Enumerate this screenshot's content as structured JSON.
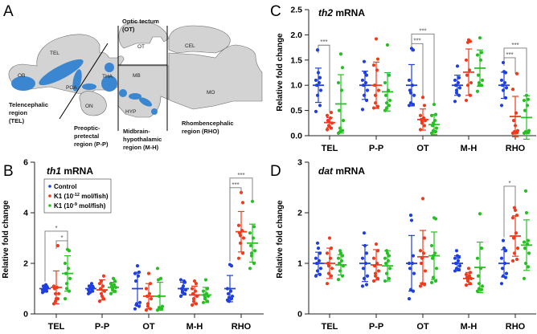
{
  "figure": {
    "panels": [
      "A",
      "B",
      "C",
      "D"
    ],
    "diagram": {
      "panel": "A",
      "structure_labels": [
        "OB",
        "TEL",
        "POA",
        "THA",
        "ON",
        "OT",
        "MB",
        "HYP",
        "CEL",
        "MO"
      ],
      "region_labels": {
        "tel": [
          "Telencephalic",
          "region",
          "(TEL)"
        ],
        "pp": [
          "Preoptic-",
          "pretectal",
          "region (P-P)"
        ],
        "ot": [
          "Optic tectum",
          "(OT)"
        ],
        "mh": [
          "Midbrain-",
          "hypothalamic",
          "region (M-H)"
        ],
        "rho": [
          "Rhombencephalic",
          "region (RHO)"
        ]
      },
      "colors": {
        "tissue": "#d3d3d3",
        "dopaminergic": "#3a86d0",
        "outline": "#555555"
      }
    },
    "legend": {
      "entries": [
        {
          "label": "Control",
          "color": "#1f3fe0"
        },
        {
          "label_main": "K1 (10",
          "sup": "-12",
          "label_tail": " mol/fish)",
          "color": "#f03a1e"
        },
        {
          "label_main": "K1 (10",
          "sup": "-9",
          "label_tail": " mol/fish)",
          "color": "#27c022"
        }
      ]
    }
  },
  "chart_data": [
    {
      "panel": "B",
      "type": "scatter",
      "title_italic": "th1",
      "title_rest": " mRNA",
      "ylabel": "Relative fold change",
      "ylim": [
        0,
        6
      ],
      "yticks": [
        0,
        2,
        4,
        6
      ],
      "ytick_labels": [
        "0",
        "2",
        "4",
        "6"
      ],
      "categories": [
        "TEL",
        "P-P",
        "OT",
        "M-H",
        "RHO"
      ],
      "series": [
        {
          "name": "Control",
          "color": "#1f3fe0",
          "mean": [
            1.0,
            1.0,
            1.0,
            1.0,
            1.0
          ],
          "sd": [
            0.12,
            0.13,
            0.65,
            0.25,
            0.52
          ],
          "points": [
            [
              0.85,
              0.9,
              1.0,
              1.05,
              1.1,
              1.15,
              0.95,
              1.0,
              1.1,
              0.9
            ],
            [
              0.8,
              0.9,
              1.0,
              1.05,
              1.1,
              1.2,
              0.95,
              1.0,
              1.1,
              0.85
            ],
            [
              0.2,
              0.3,
              0.4,
              0.45,
              1.3,
              1.5,
              1.6,
              1.65,
              1.9,
              0.35
            ],
            [
              0.7,
              0.8,
              0.9,
              0.95,
              1.0,
              1.3,
              1.35,
              1.25,
              1.1,
              0.85
            ],
            [
              0.55,
              0.6,
              0.65,
              0.7,
              0.8,
              0.9,
              1.0,
              1.9,
              1.95,
              0.5
            ]
          ]
        },
        {
          "name": "K1 (10^-12 mol/fish)",
          "color": "#f03a1e",
          "mean": [
            1.05,
            0.95,
            0.7,
            0.75,
            3.25
          ],
          "sd": [
            0.65,
            0.4,
            0.5,
            0.35,
            0.8
          ],
          "points": [
            [
              0.4,
              0.6,
              0.8,
              0.8,
              1.0,
              1.05,
              1.1,
              2.7,
              0.6,
              0.5
            ],
            [
              0.5,
              0.6,
              0.8,
              0.9,
              1.0,
              1.1,
              1.2,
              1.5,
              0.7,
              1.3
            ],
            [
              0.15,
              0.2,
              0.4,
              0.6,
              0.7,
              0.8,
              1.0,
              1.2,
              1.6,
              0.3
            ],
            [
              0.35,
              0.4,
              0.5,
              0.7,
              0.8,
              0.9,
              1.0,
              1.2,
              1.3,
              0.6
            ],
            [
              2.2,
              2.4,
              2.8,
              3.0,
              3.2,
              3.3,
              3.5,
              4.4,
              4.8,
              3.1
            ]
          ]
        },
        {
          "name": "K1 (10^-9 mol/fish)",
          "color": "#27c022",
          "mean": [
            1.6,
            1.05,
            0.7,
            0.75,
            2.8
          ],
          "sd": [
            0.7,
            0.2,
            0.55,
            0.3,
            0.75
          ],
          "points": [
            [
              0.6,
              0.9,
              1.2,
              1.4,
              1.6,
              1.8,
              2.0,
              2.5,
              2.55,
              1.0
            ],
            [
              0.8,
              0.9,
              1.0,
              1.05,
              1.1,
              1.15,
              1.2,
              1.3,
              1.4,
              0.95
            ],
            [
              0.15,
              0.2,
              0.25,
              0.3,
              1.35,
              1.4,
              1.8,
              0.2,
              0.22,
              0.7
            ],
            [
              0.45,
              0.5,
              0.6,
              0.7,
              0.75,
              0.8,
              0.9,
              1.0,
              1.35,
              0.65
            ],
            [
              1.8,
              2.0,
              2.3,
              2.5,
              2.7,
              3.0,
              3.2,
              3.45,
              4.45,
              2.4
            ]
          ]
        }
      ],
      "significance": [
        {
          "group": 0,
          "from": 0,
          "to": 2,
          "label": "*"
        },
        {
          "group": 0,
          "from": 1,
          "to": 2,
          "label": "*"
        },
        {
          "group": 4,
          "from": 0,
          "to": 1,
          "label": "***"
        },
        {
          "group": 4,
          "from": 0,
          "to": 2,
          "label": "***"
        }
      ],
      "legend_position": "top-left"
    },
    {
      "panel": "C",
      "type": "scatter",
      "title_italic": "th2",
      "title_rest": " mRNA",
      "ylabel": "Relative fold change",
      "ylim": [
        0,
        2.5
      ],
      "yticks": [
        0,
        0.5,
        1.0,
        1.5,
        2.0,
        2.5
      ],
      "ytick_labels": [
        "0.0",
        "0.5",
        "1.0",
        "1.5",
        "2.0",
        "2.5"
      ],
      "categories": [
        "TEL",
        "P-P",
        "OT",
        "M-H",
        "RHO"
      ],
      "series": [
        {
          "name": "Control",
          "color": "#1f3fe0",
          "mean": [
            1.0,
            1.0,
            1.0,
            1.0,
            1.0
          ],
          "sd": [
            0.34,
            0.28,
            0.41,
            0.2,
            0.26
          ],
          "points": [
            [
              0.48,
              0.6,
              0.8,
              0.9,
              1.0,
              1.05,
              1.1,
              1.15,
              1.25,
              1.7
            ],
            [
              0.52,
              0.7,
              0.8,
              0.9,
              1.0,
              1.05,
              1.1,
              1.2,
              1.25,
              1.47
            ],
            [
              0.6,
              0.62,
              0.65,
              0.8,
              0.9,
              1.0,
              1.1,
              1.7,
              1.73,
              0.85
            ],
            [
              0.68,
              0.8,
              0.9,
              0.95,
              1.0,
              1.05,
              1.1,
              1.15,
              1.38,
              0.85
            ],
            [
              0.6,
              0.75,
              0.9,
              0.95,
              1.0,
              1.05,
              1.1,
              1.25,
              1.27,
              1.45
            ]
          ]
        },
        {
          "name": "K1 (10^-12 mol/fish)",
          "color": "#f03a1e",
          "mean": [
            0.26,
            1.0,
            0.32,
            1.26,
            0.38
          ],
          "sd": [
            0.1,
            0.46,
            0.21,
            0.46,
            0.4
          ],
          "points": [
            [
              0.12,
              0.15,
              0.2,
              0.25,
              0.3,
              0.35,
              0.4,
              0.46,
              0.18,
              0.28
            ],
            [
              0.55,
              0.58,
              0.65,
              0.9,
              1.0,
              1.3,
              1.4,
              1.52,
              1.92,
              0.8
            ],
            [
              0.12,
              0.2,
              0.25,
              0.3,
              0.32,
              0.35,
              0.4,
              0.6,
              0.76,
              0.28
            ],
            [
              0.7,
              0.8,
              1.0,
              1.05,
              1.2,
              1.3,
              1.5,
              1.87,
              1.9,
              1.85
            ],
            [
              0.05,
              0.06,
              0.07,
              0.1,
              0.3,
              0.45,
              0.92,
              1.23,
              0.2,
              0.08
            ]
          ]
        },
        {
          "name": "K1 (10^-9 mol/fish)",
          "color": "#27c022",
          "mean": [
            0.63,
            0.87,
            0.22,
            1.34,
            0.36
          ],
          "sd": [
            0.58,
            0.38,
            0.2,
            0.36,
            0.43
          ],
          "points": [
            [
              0.05,
              0.1,
              0.15,
              0.3,
              0.5,
              0.9,
              1.05,
              1.35,
              1.62,
              0.08
            ],
            [
              0.5,
              0.6,
              0.65,
              0.7,
              0.8,
              0.9,
              1.05,
              1.2,
              1.8,
              0.55
            ],
            [
              0.05,
              0.08,
              0.1,
              0.15,
              0.2,
              0.3,
              0.4,
              0.42,
              0.62,
              0.25
            ],
            [
              0.88,
              1.0,
              1.05,
              1.1,
              1.2,
              1.5,
              1.6,
              1.65,
              1.94,
              1.0
            ],
            [
              0.05,
              0.06,
              0.08,
              0.1,
              0.5,
              0.6,
              0.7,
              0.72,
              0.8,
              0.07
            ]
          ]
        }
      ],
      "significance": [
        {
          "group": 0,
          "from": 0,
          "to": 1,
          "label": "***"
        },
        {
          "group": 2,
          "from": 0,
          "to": 1,
          "label": "***"
        },
        {
          "group": 2,
          "from": 0,
          "to": 2,
          "label": "***"
        },
        {
          "group": 4,
          "from": 0,
          "to": 1,
          "label": "***"
        },
        {
          "group": 4,
          "from": 0,
          "to": 2,
          "label": "***"
        }
      ]
    },
    {
      "panel": "D",
      "type": "scatter",
      "title_italic": "dat",
      "title_rest": " mRNA",
      "ylabel": "Relative fold change",
      "ylim": [
        0,
        3
      ],
      "yticks": [
        0,
        1,
        2,
        3
      ],
      "ytick_labels": [
        "0",
        "1",
        "2",
        "3"
      ],
      "categories": [
        "TEL",
        "P-P",
        "OT",
        "M-H",
        "RHO"
      ],
      "series": [
        {
          "name": "Control",
          "color": "#1f3fe0",
          "mean": [
            1.0,
            1.0,
            1.0,
            1.0,
            1.0
          ],
          "sd": [
            0.22,
            0.36,
            0.55,
            0.15,
            0.27
          ],
          "points": [
            [
              0.75,
              0.78,
              0.85,
              0.9,
              1.0,
              1.05,
              1.1,
              1.2,
              1.3,
              1.4
            ],
            [
              0.55,
              0.58,
              0.7,
              0.75,
              0.9,
              1.0,
              1.1,
              1.2,
              1.35,
              1.6
            ],
            [
              0.3,
              0.45,
              0.48,
              0.8,
              0.9,
              1.0,
              1.0,
              1.15,
              1.85,
              1.95
            ],
            [
              0.85,
              0.88,
              0.9,
              0.95,
              1.0,
              1.05,
              1.1,
              1.12,
              1.15,
              1.25
            ],
            [
              0.6,
              0.72,
              0.75,
              0.8,
              0.9,
              1.0,
              1.1,
              1.25,
              1.3,
              1.45
            ]
          ]
        },
        {
          "name": "K1 (10^-12 mol/fish)",
          "color": "#f03a1e",
          "mean": [
            1.0,
            0.97,
            1.13,
            0.7,
            1.54
          ],
          "sd": [
            0.3,
            0.3,
            0.52,
            0.12,
            0.4
          ],
          "points": [
            [
              0.6,
              0.75,
              0.8,
              0.9,
              1.0,
              1.1,
              1.2,
              1.3,
              1.5,
              0.95
            ],
            [
              0.65,
              0.7,
              0.75,
              0.85,
              0.95,
              1.0,
              1.1,
              1.25,
              1.38,
              0.8
            ],
            [
              0.55,
              0.58,
              0.6,
              0.85,
              1.0,
              1.2,
              1.25,
              1.5,
              2.28,
              1.1
            ],
            [
              0.57,
              0.6,
              0.65,
              0.7,
              0.72,
              0.75,
              0.78,
              0.82,
              0.9,
              0.68
            ],
            [
              1.05,
              1.08,
              1.2,
              1.3,
              1.5,
              1.6,
              1.9,
              1.95,
              2.05,
              2.1
            ]
          ]
        },
        {
          "name": "K1 (10^-9 mol/fish)",
          "color": "#27c022",
          "mean": [
            0.97,
            0.95,
            1.15,
            0.92,
            1.36
          ],
          "sd": [
            0.2,
            0.3,
            0.47,
            0.5,
            0.5
          ],
          "points": [
            [
              0.68,
              0.75,
              0.85,
              0.95,
              1.0,
              1.05,
              1.1,
              1.15,
              1.2,
              1.25
            ],
            [
              0.65,
              0.7,
              0.8,
              0.9,
              1.0,
              1.05,
              1.1,
              1.15,
              1.2,
              1.25
            ],
            [
              0.62,
              0.65,
              0.72,
              0.9,
              1.1,
              1.2,
              1.35,
              1.88,
              1.9,
              1.15
            ],
            [
              0.45,
              0.48,
              0.5,
              0.55,
              0.75,
              0.9,
              1.1,
              1.3,
              1.98,
              0.6
            ],
            [
              0.7,
              0.93,
              1.0,
              1.2,
              1.3,
              1.38,
              1.42,
              1.45,
              2.0,
              2.43
            ]
          ]
        }
      ],
      "significance": [
        {
          "group": 4,
          "from": 0,
          "to": 1,
          "label": "*"
        }
      ]
    }
  ]
}
